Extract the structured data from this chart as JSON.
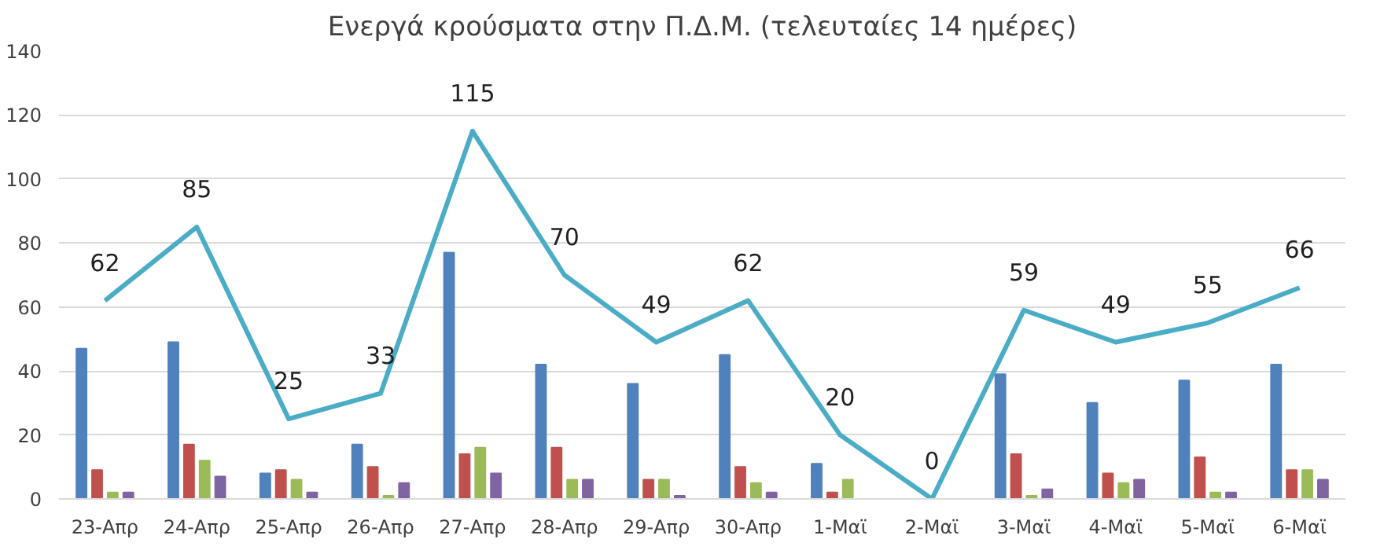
{
  "chart_data": {
    "type": "bar",
    "title": "Ενεργά κρούσματα στην Π.Δ.Μ. (τελευταίες 14 ημέρες)",
    "categories": [
      "23-Απρ",
      "24-Απρ",
      "25-Απρ",
      "26-Απρ",
      "27-Απρ",
      "28-Απρ",
      "29-Απρ",
      "30-Απρ",
      "1-Μαϊ",
      "2-Μαϊ",
      "3-Μαϊ",
      "4-Μαϊ",
      "5-Μαϊ",
      "6-Μαϊ"
    ],
    "series": [
      {
        "color": "#4f81bd",
        "values": [
          47,
          49,
          8,
          17,
          77,
          42,
          36,
          45,
          11,
          0,
          39,
          30,
          37,
          42
        ]
      },
      {
        "color": "#c0504d",
        "values": [
          9,
          17,
          9,
          10,
          14,
          16,
          6,
          10,
          2,
          0,
          14,
          8,
          13,
          9
        ]
      },
      {
        "color": "#9bbb59",
        "values": [
          2,
          12,
          6,
          1,
          16,
          6,
          6,
          5,
          6,
          0,
          1,
          5,
          2,
          9
        ]
      },
      {
        "color": "#8064a2",
        "values": [
          2,
          7,
          2,
          5,
          8,
          6,
          1,
          2,
          0,
          0,
          3,
          6,
          2,
          6
        ]
      },
      {
        "type": "line",
        "color": "#4bacc6",
        "values": [
          62,
          85,
          25,
          33,
          115,
          70,
          49,
          62,
          20,
          0,
          59,
          49,
          55,
          66
        ],
        "value_labels": [
          "62",
          "85",
          "25",
          "33",
          "115",
          "70",
          "49",
          "62",
          "20",
          "0",
          "59",
          "49",
          "55",
          "66"
        ]
      }
    ],
    "ylim": [
      0,
      140
    ],
    "yticks": [
      0,
      20,
      40,
      60,
      80,
      100,
      120,
      140
    ],
    "grid": "y",
    "marker": "none",
    "line_style": "solid"
  }
}
